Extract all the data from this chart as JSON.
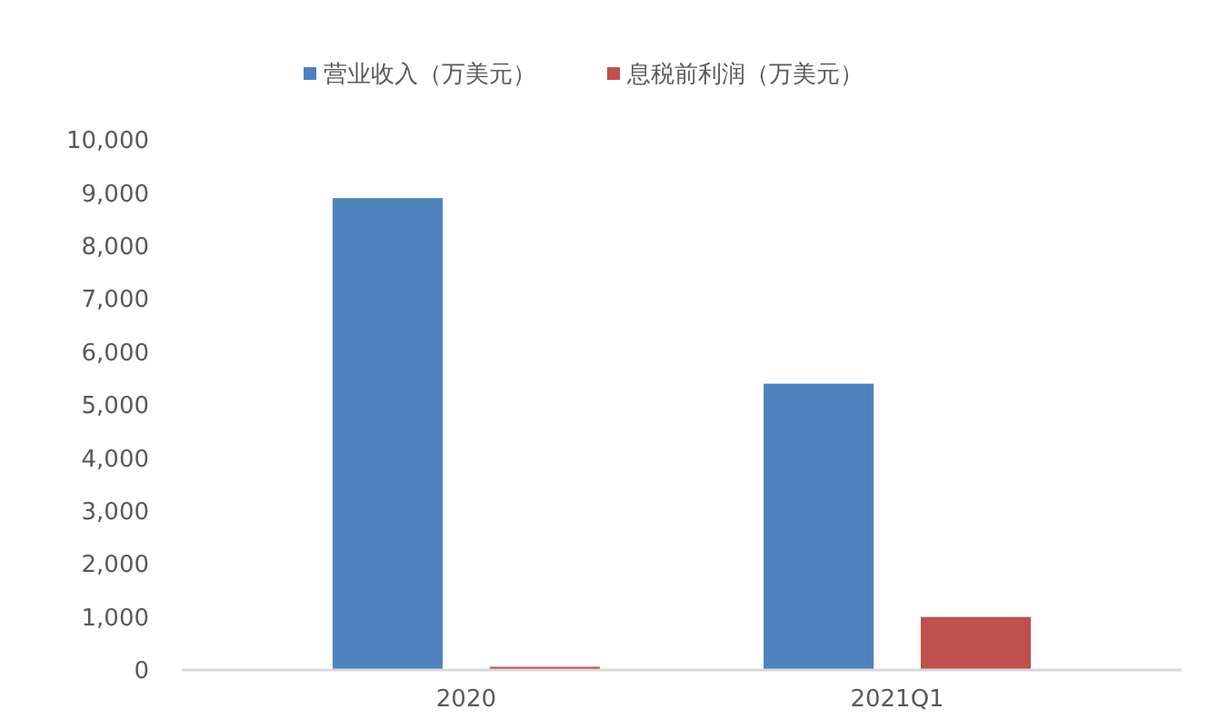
{
  "chart_data": {
    "type": "bar",
    "categories": [
      "2020",
      "2021Q1"
    ],
    "series": [
      {
        "name": "营业收入（万美元）",
        "color": "#4f81bd",
        "values": [
          8900,
          5400
        ]
      },
      {
        "name": "息税前利润（万美元）",
        "color": "#c0504d",
        "values": [
          60,
          1000
        ]
      }
    ],
    "ylim": [
      0,
      10000
    ],
    "yticks": [
      {
        "value": 0,
        "label": "0"
      },
      {
        "value": 1000,
        "label": "1,000"
      },
      {
        "value": 2000,
        "label": "2,000"
      },
      {
        "value": 3000,
        "label": "3,000"
      },
      {
        "value": 4000,
        "label": "4,000"
      },
      {
        "value": 5000,
        "label": "5,000"
      },
      {
        "value": 6000,
        "label": "6,000"
      },
      {
        "value": 7000,
        "label": "7,000"
      },
      {
        "value": 8000,
        "label": "8,000"
      },
      {
        "value": 9000,
        "label": "9,000"
      },
      {
        "value": 10000,
        "label": "10,000"
      }
    ],
    "grid": false,
    "legend": "top"
  }
}
